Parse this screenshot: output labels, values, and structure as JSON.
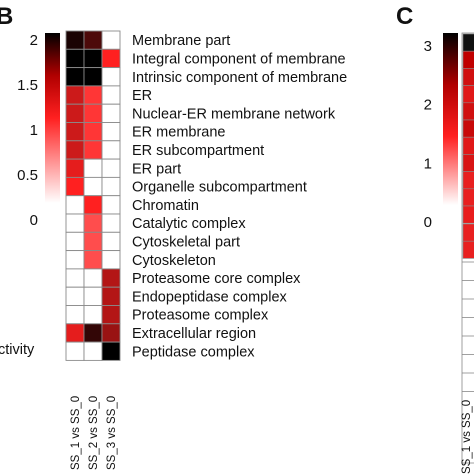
{
  "panels": {
    "left": "B",
    "right": "C"
  },
  "side_label_fragment": "ctivity",
  "colorbar_left_ticks": [
    "2",
    "1.5",
    "1",
    "0.5",
    "0"
  ],
  "colorbar_right_ticks": [
    "3",
    "2",
    "1",
    "0"
  ],
  "right_fragment_label": "SS_1 vs SS_0",
  "chart_data": {
    "type": "heatmap",
    "title": "",
    "rows": [
      "Membrane part",
      "Integral component of membrane",
      "Intrinsic component of membrane",
      "ER",
      "Nuclear-ER membrane network",
      "ER membrane",
      "ER subcompartment",
      "ER part",
      "Organelle subcompartment",
      "Chromatin",
      "Catalytic complex",
      "Cytoskeletal part",
      "Cytoskeleton",
      "Proteasome core complex",
      "Endopeptidase complex",
      "Proteasome complex",
      "Extracellular region",
      "Peptidase complex"
    ],
    "columns": [
      "SS_1 vs SS_0",
      "SS_2 vs SS_0",
      "SS_3 vs SS_0"
    ],
    "values": [
      [
        1.9,
        1.7,
        0.0
      ],
      [
        2.0,
        2.0,
        1.0
      ],
      [
        2.0,
        2.0,
        0.0
      ],
      [
        1.2,
        0.9,
        0.0
      ],
      [
        1.2,
        0.9,
        0.0
      ],
      [
        1.2,
        0.9,
        0.0
      ],
      [
        1.2,
        0.9,
        0.0
      ],
      [
        1.1,
        0.0,
        0.0
      ],
      [
        1.0,
        0.0,
        0.0
      ],
      [
        0.0,
        1.0,
        0.0
      ],
      [
        0.0,
        0.8,
        0.0
      ],
      [
        0.0,
        0.8,
        0.0
      ],
      [
        0.0,
        0.8,
        0.0
      ],
      [
        0.0,
        0.0,
        1.3
      ],
      [
        0.0,
        0.0,
        1.3
      ],
      [
        0.0,
        0.0,
        1.3
      ],
      [
        1.1,
        1.8,
        1.4
      ],
      [
        0.0,
        0.0,
        2.2
      ]
    ],
    "color_scale": {
      "min": 0,
      "max": 2,
      "low": "#ffffff",
      "mid": "#ff2020",
      "high": "#000000"
    },
    "colorbar_ticks": [
      2,
      1.5,
      1,
      0.5,
      0
    ]
  }
}
